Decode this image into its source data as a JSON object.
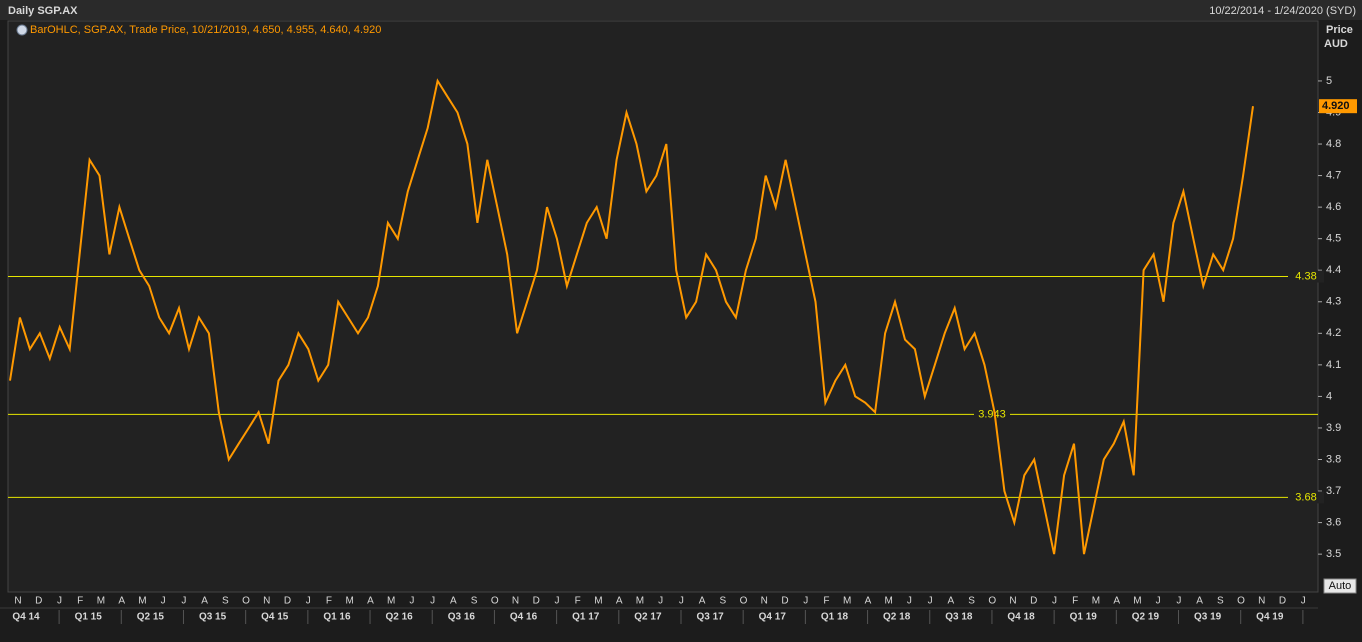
{
  "header": {
    "title": "Daily SGP.AX",
    "range": "10/22/2014 - 1/24/2020 (SYD)"
  },
  "chart_data": {
    "type": "line",
    "legend": "BarOHLC, SGP.AX, Trade Price, 10/21/2019, 4.650, 4.955, 4.640, 4.920",
    "y_axis_label": [
      "Price",
      "AUD"
    ],
    "series": [
      {
        "color": "#ff9900",
        "values": [
          4.05,
          4.25,
          4.15,
          4.2,
          4.12,
          4.22,
          4.15,
          4.45,
          4.75,
          4.7,
          4.45,
          4.6,
          4.5,
          4.4,
          4.35,
          4.25,
          4.2,
          4.28,
          4.15,
          4.25,
          4.2,
          3.95,
          3.8,
          3.85,
          3.9,
          3.95,
          3.85,
          4.05,
          4.1,
          4.2,
          4.15,
          4.05,
          4.1,
          4.3,
          4.25,
          4.2,
          4.25,
          4.35,
          4.55,
          4.5,
          4.65,
          4.75,
          4.85,
          5.0,
          4.95,
          4.9,
          4.8,
          4.55,
          4.75,
          4.6,
          4.45,
          4.2,
          4.3,
          4.4,
          4.6,
          4.5,
          4.35,
          4.45,
          4.55,
          4.6,
          4.5,
          4.75,
          4.9,
          4.8,
          4.65,
          4.7,
          4.8,
          4.4,
          4.25,
          4.3,
          4.45,
          4.4,
          4.3,
          4.25,
          4.4,
          4.5,
          4.7,
          4.6,
          4.75,
          4.6,
          4.45,
          4.3,
          3.98,
          4.05,
          4.1,
          4.0,
          3.98,
          3.95,
          4.2,
          4.3,
          4.18,
          4.15,
          4.0,
          4.1,
          4.2,
          4.28,
          4.15,
          4.2,
          4.1,
          3.95,
          3.7,
          3.6,
          3.75,
          3.8,
          3.65,
          3.5,
          3.75,
          3.85,
          3.5,
          3.65,
          3.8,
          3.85,
          3.92,
          3.75,
          4.4,
          4.45,
          4.3,
          4.55,
          4.65,
          4.5,
          4.35,
          4.45,
          4.4,
          4.5,
          4.7,
          4.92
        ]
      }
    ],
    "last_price": {
      "value": 4.92,
      "label": "4.920"
    },
    "hlines": [
      4.38,
      3.943,
      3.68
    ],
    "hline_color": "#e6e600",
    "ylim": [
      3.38,
      5.19
    ],
    "yticks": [
      3.5,
      3.6,
      3.7,
      3.8,
      3.9,
      4,
      4.1,
      4.2,
      4.3,
      4.4,
      4.5,
      4.6,
      4.7,
      4.8,
      4.9,
      5
    ],
    "month_labels": [
      "N",
      "D",
      "J",
      "F",
      "M",
      "A",
      "M",
      "J",
      "J",
      "A",
      "S",
      "O",
      "N",
      "D",
      "J",
      "F",
      "M",
      "A",
      "M",
      "J",
      "J",
      "A",
      "S",
      "O",
      "N",
      "D",
      "J",
      "F",
      "M",
      "A",
      "M",
      "J",
      "J",
      "A",
      "S",
      "O",
      "N",
      "D",
      "J",
      "F",
      "M",
      "A",
      "M",
      "J",
      "J",
      "A",
      "S",
      "O",
      "N",
      "D",
      "J",
      "F",
      "M",
      "A",
      "M",
      "J",
      "J",
      "A",
      "S",
      "O",
      "N",
      "D",
      "J"
    ],
    "quarter_labels": [
      "Q4 14",
      "Q1 15",
      "Q2 15",
      "Q3 15",
      "Q4 15",
      "Q1 16",
      "Q2 16",
      "Q3 16",
      "Q4 16",
      "Q1 17",
      "Q2 17",
      "Q3 17",
      "Q4 17",
      "Q1 18",
      "Q2 18",
      "Q3 18",
      "Q4 18",
      "Q1 19",
      "Q2 19",
      "Q3 19",
      "Q4 19"
    ],
    "button": "Auto"
  }
}
